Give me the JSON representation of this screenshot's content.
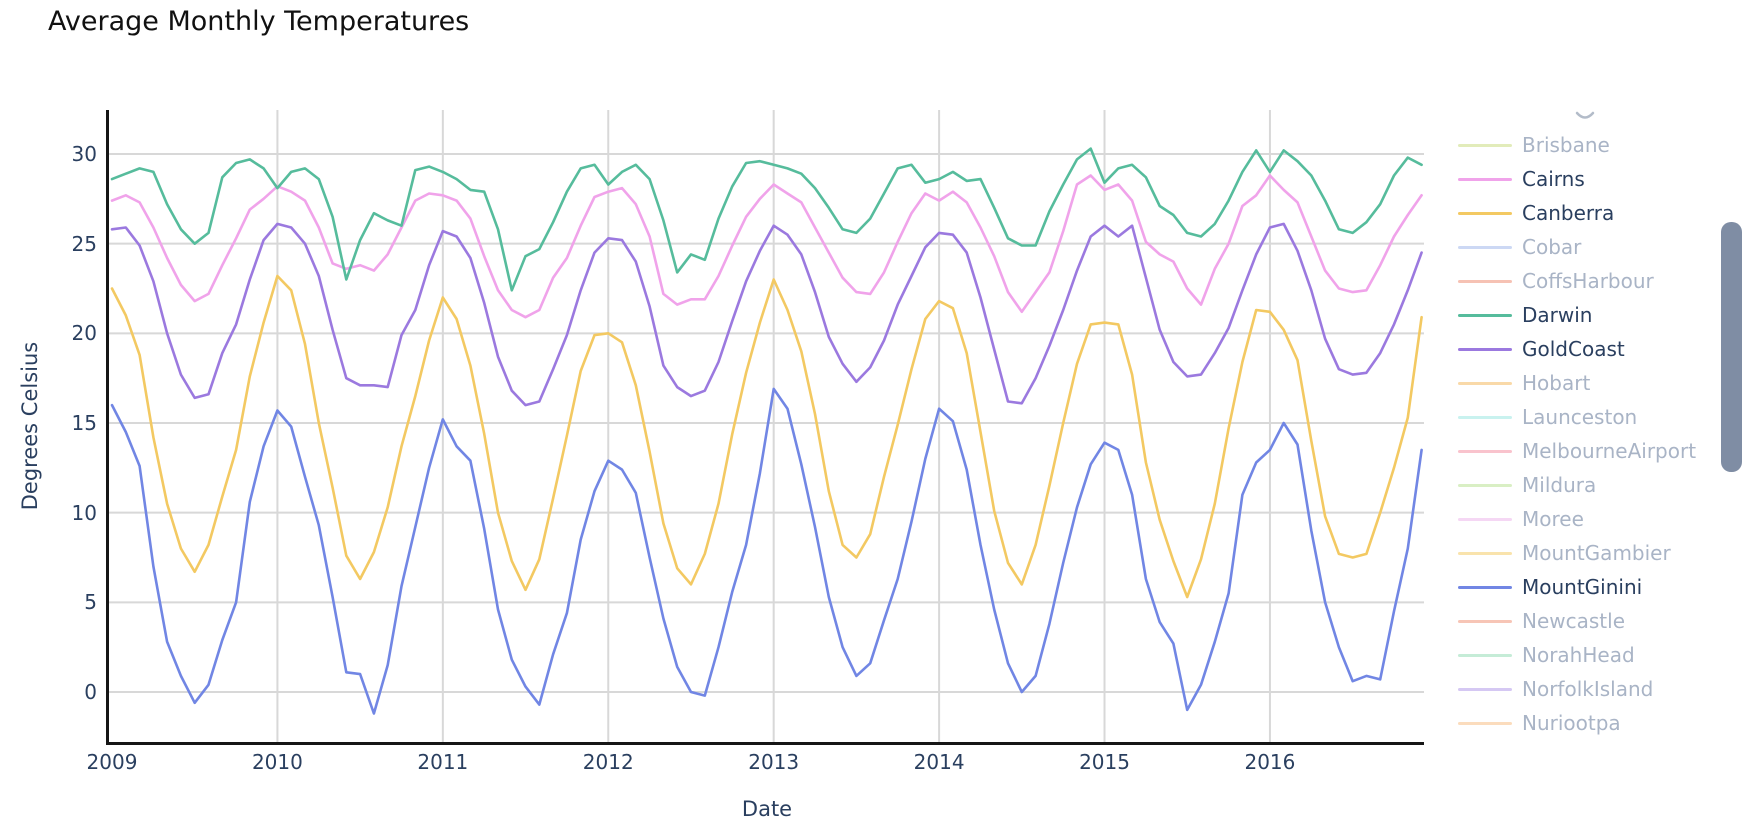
{
  "title": "Average Monthly Temperatures",
  "y_axis": {
    "title": "Degrees Celsius",
    "ticks": [
      30,
      25,
      20,
      15,
      10,
      5,
      0
    ]
  },
  "x_axis": {
    "title": "Date",
    "ticks": [
      "2009",
      "2010",
      "2011",
      "2012",
      "2013",
      "2014",
      "2015",
      "2016"
    ]
  },
  "styles": {
    "grid_color": "#d8d8d8",
    "axis_line_color": "#161616",
    "tick_label_color": "#2a3f5f",
    "legend_active_text": "#2a3f5f",
    "legend_inactive_text": "#a9b4c6",
    "scrollbar_color": "#7f8da4",
    "partial_glyph_color": "#b3bcc9"
  },
  "legend": {
    "items": [
      {
        "label": "Brisbane",
        "color": "#e2ecba",
        "active": false
      },
      {
        "label": "Cairns",
        "color": "#f0a3ea",
        "active": true
      },
      {
        "label": "Canberra",
        "color": "#f3c962",
        "active": true
      },
      {
        "label": "Cobar",
        "color": "#ccd8f4",
        "active": false
      },
      {
        "label": "CoffsHarbour",
        "color": "#f6c2b4",
        "active": false
      },
      {
        "label": "Darwin",
        "color": "#56bc9c",
        "active": true
      },
      {
        "label": "GoldCoast",
        "color": "#9b79df",
        "active": true
      },
      {
        "label": "Hobart",
        "color": "#f9d9a8",
        "active": false
      },
      {
        "label": "Launceston",
        "color": "#c9f2ef",
        "active": false
      },
      {
        "label": "MelbourneAirport",
        "color": "#f9c3cd",
        "active": false
      },
      {
        "label": "Mildura",
        "color": "#d9efc4",
        "active": false
      },
      {
        "label": "Moree",
        "color": "#f5d7f4",
        "active": false
      },
      {
        "label": "MountGambier",
        "color": "#f9e3ac",
        "active": false
      },
      {
        "label": "MountGinini",
        "color": "#7186e4",
        "active": true
      },
      {
        "label": "Newcastle",
        "color": "#f7c5b6",
        "active": false
      },
      {
        "label": "NorahHead",
        "color": "#c5ecd7",
        "active": false
      },
      {
        "label": "NorfolkIsland",
        "color": "#d5c8f3",
        "active": false
      },
      {
        "label": "Nuriootpa",
        "color": "#fbdcbd",
        "active": false
      }
    ],
    "has_scrollbar": true
  },
  "chart_data": {
    "type": "line",
    "title": "Average Monthly Temperatures",
    "xlabel": "Date",
    "ylabel": "Degrees Celsius",
    "x_start": "2009-01",
    "x_end": "2016-12",
    "points_per_series": 96,
    "x_tick_labels": [
      "2009",
      "2010",
      "2011",
      "2012",
      "2013",
      "2014",
      "2015",
      "2016"
    ],
    "ylim": [
      -2.8,
      32.5
    ],
    "grid": true,
    "legend_position": "right",
    "hidden_series": [
      "Brisbane",
      "Cobar",
      "CoffsHarbour",
      "Hobart",
      "Launceston",
      "MelbourneAirport",
      "Mildura",
      "Moree",
      "MountGambier",
      "Newcastle",
      "NorahHead",
      "NorfolkIsland",
      "Nuriootpa"
    ],
    "series": [
      {
        "name": "Cairns",
        "color": "#f0a3ea",
        "values": [
          27.4,
          27.7,
          27.3,
          25.9,
          24.2,
          22.7,
          21.8,
          22.2,
          23.8,
          25.3,
          26.9,
          27.5,
          28.2,
          27.9,
          27.4,
          25.9,
          23.9,
          23.6,
          23.8,
          23.5,
          24.4,
          25.9,
          27.4,
          27.8,
          27.7,
          27.4,
          26.4,
          24.3,
          22.4,
          21.3,
          20.9,
          21.3,
          23.1,
          24.2,
          26.0,
          27.6,
          27.9,
          28.1,
          27.2,
          25.4,
          22.2,
          21.6,
          21.9,
          21.9,
          23.2,
          24.9,
          26.5,
          27.5,
          28.3,
          27.8,
          27.3,
          25.9,
          24.5,
          23.1,
          22.3,
          22.2,
          23.4,
          25.1,
          26.7,
          27.8,
          27.4,
          27.9,
          27.3,
          25.9,
          24.3,
          22.3,
          21.2,
          22.3,
          23.4,
          25.7,
          28.3,
          28.8,
          28.0,
          28.3,
          27.4,
          25.1,
          24.4,
          24.0,
          22.5,
          21.6,
          23.6,
          25.0,
          27.1,
          27.7,
          28.8,
          28.0,
          27.3,
          25.4,
          23.5,
          22.5,
          22.3,
          22.4,
          23.8,
          25.4,
          26.6,
          27.7
        ]
      },
      {
        "name": "Canberra",
        "color": "#f3c962",
        "values": [
          22.5,
          21.0,
          18.8,
          14.2,
          10.5,
          8.0,
          6.7,
          8.2,
          10.9,
          13.5,
          17.6,
          20.6,
          23.2,
          22.4,
          19.4,
          15.0,
          11.4,
          7.6,
          6.3,
          7.8,
          10.3,
          13.7,
          16.5,
          19.6,
          22.0,
          20.8,
          18.2,
          14.4,
          10.0,
          7.3,
          5.7,
          7.4,
          10.8,
          14.3,
          17.9,
          19.9,
          20.0,
          19.5,
          17.1,
          13.4,
          9.4,
          6.9,
          6.0,
          7.7,
          10.5,
          14.4,
          17.8,
          20.6,
          23.0,
          21.3,
          19.0,
          15.5,
          11.2,
          8.2,
          7.5,
          8.8,
          12.0,
          14.9,
          18.0,
          20.8,
          21.8,
          21.4,
          18.9,
          14.5,
          10.1,
          7.2,
          6.0,
          8.2,
          11.5,
          15.0,
          18.3,
          20.5,
          20.6,
          20.5,
          17.7,
          12.8,
          9.6,
          7.3,
          5.3,
          7.4,
          10.5,
          14.7,
          18.4,
          21.3,
          21.2,
          20.2,
          18.5,
          14.0,
          9.8,
          7.7,
          7.5,
          7.7,
          10.0,
          12.5,
          15.3,
          20.9
        ]
      },
      {
        "name": "Darwin",
        "color": "#56bc9c",
        "values": [
          28.6,
          28.9,
          29.2,
          29.0,
          27.2,
          25.8,
          25.0,
          25.6,
          28.7,
          29.5,
          29.7,
          29.2,
          28.1,
          29.0,
          29.2,
          28.6,
          26.5,
          23.0,
          25.2,
          26.7,
          26.3,
          26.0,
          29.1,
          29.3,
          29.0,
          28.6,
          28.0,
          27.9,
          25.8,
          22.4,
          24.3,
          24.7,
          26.2,
          27.9,
          29.2,
          29.4,
          28.3,
          29.0,
          29.4,
          28.6,
          26.3,
          23.4,
          24.4,
          24.1,
          26.4,
          28.2,
          29.5,
          29.6,
          29.4,
          29.2,
          28.9,
          28.1,
          27.0,
          25.8,
          25.6,
          26.4,
          27.8,
          29.2,
          29.4,
          28.4,
          28.6,
          29.0,
          28.5,
          28.6,
          27.0,
          25.3,
          24.9,
          24.9,
          26.8,
          28.3,
          29.7,
          30.3,
          28.4,
          29.2,
          29.4,
          28.7,
          27.1,
          26.6,
          25.6,
          25.4,
          26.1,
          27.4,
          29.0,
          30.2,
          29.0,
          30.2,
          29.6,
          28.8,
          27.4,
          25.8,
          25.6,
          26.2,
          27.2,
          28.8,
          29.8,
          29.4
        ]
      },
      {
        "name": "GoldCoast",
        "color": "#9b79df",
        "values": [
          25.8,
          25.9,
          24.9,
          22.9,
          20.0,
          17.7,
          16.4,
          16.6,
          18.9,
          20.5,
          23.0,
          25.2,
          26.1,
          25.9,
          25.0,
          23.2,
          20.2,
          17.5,
          17.1,
          17.1,
          17.0,
          19.9,
          21.3,
          23.8,
          25.7,
          25.4,
          24.2,
          21.7,
          18.7,
          16.8,
          16.0,
          16.2,
          18.0,
          19.9,
          22.4,
          24.5,
          25.3,
          25.2,
          24.0,
          21.5,
          18.2,
          17.0,
          16.5,
          16.8,
          18.4,
          20.7,
          22.9,
          24.6,
          26.0,
          25.5,
          24.4,
          22.3,
          19.8,
          18.3,
          17.3,
          18.1,
          19.6,
          21.6,
          23.2,
          24.8,
          25.6,
          25.5,
          24.5,
          22.0,
          19.1,
          16.2,
          16.1,
          17.5,
          19.3,
          21.3,
          23.5,
          25.4,
          26.0,
          25.4,
          26.0,
          23.1,
          20.2,
          18.4,
          17.6,
          17.7,
          18.9,
          20.3,
          22.4,
          24.4,
          25.9,
          26.1,
          24.6,
          22.4,
          19.7,
          18.0,
          17.7,
          17.8,
          18.9,
          20.5,
          22.4,
          24.5
        ]
      },
      {
        "name": "MountGinini",
        "color": "#7186e4",
        "values": [
          16.0,
          14.5,
          12.6,
          7.0,
          2.8,
          0.9,
          -0.6,
          0.4,
          2.9,
          5.0,
          10.6,
          13.7,
          15.7,
          14.8,
          12.0,
          9.3,
          5.3,
          1.1,
          1.0,
          -1.2,
          1.5,
          5.9,
          9.2,
          12.5,
          15.2,
          13.7,
          12.9,
          9.1,
          4.6,
          1.8,
          0.3,
          -0.7,
          2.1,
          4.4,
          8.5,
          11.2,
          12.9,
          12.4,
          11.1,
          7.5,
          4.1,
          1.4,
          0.0,
          -0.2,
          2.5,
          5.6,
          8.2,
          12.2,
          16.9,
          15.8,
          12.7,
          9.2,
          5.3,
          2.5,
          0.9,
          1.6,
          4.0,
          6.3,
          9.5,
          13.0,
          15.8,
          15.1,
          12.4,
          8.2,
          4.6,
          1.6,
          0.0,
          0.9,
          3.8,
          7.2,
          10.3,
          12.7,
          13.9,
          13.5,
          11.0,
          6.3,
          3.9,
          2.7,
          -1.0,
          0.4,
          2.8,
          5.5,
          11.0,
          12.8,
          13.5,
          15.0,
          13.8,
          9.0,
          5.0,
          2.5,
          0.6,
          0.9,
          0.7,
          4.5,
          8.0,
          13.5
        ]
      }
    ]
  }
}
